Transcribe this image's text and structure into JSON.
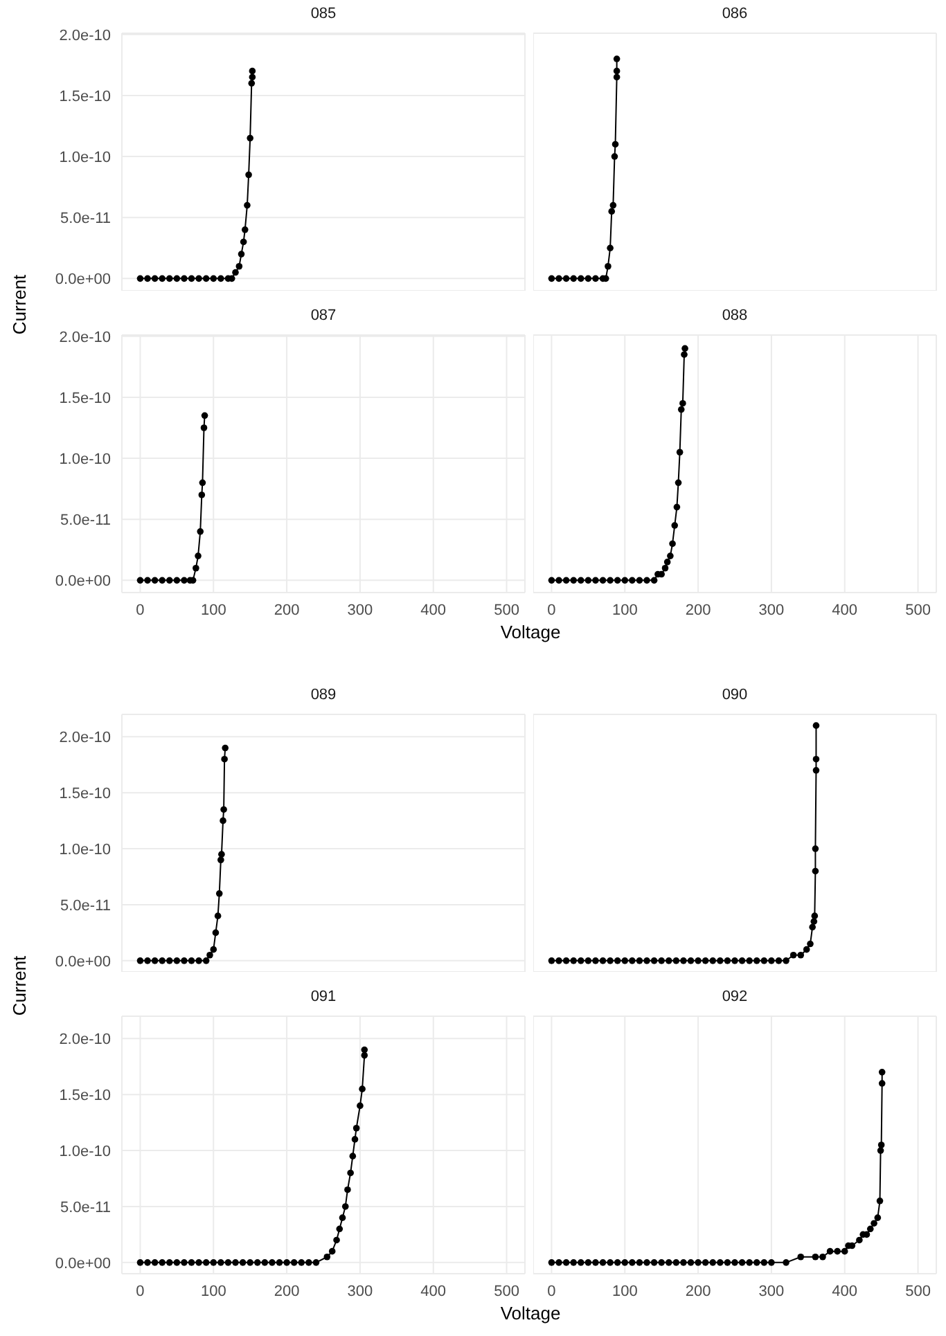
{
  "chart_data": [
    {
      "type": "line",
      "title": "085",
      "ylabel": "Current",
      "tick_labels": "y",
      "grid": true,
      "marker": "circle",
      "line_style": "solid",
      "xlim": [
        -25,
        525
      ],
      "ylim": [
        -1e-11,
        2.01e-10
      ],
      "xticks": [
        0,
        100,
        200,
        300,
        400,
        500
      ],
      "yticks": [
        {
          "value": 0,
          "label": "0.0e+00"
        },
        {
          "value": 5e-11,
          "label": "5.0e-11"
        },
        {
          "value": 1e-10,
          "label": "1.0e-10"
        },
        {
          "value": 1.5e-10,
          "label": "1.5e-10"
        },
        {
          "value": 2e-10,
          "label": "2.0e-10"
        }
      ],
      "series": [
        {
          "color": "#000000",
          "x": [
            0,
            10,
            20,
            30,
            40,
            50,
            60,
            70,
            80,
            90,
            100,
            110,
            120,
            125,
            130,
            135,
            138,
            141,
            143,
            146,
            148,
            150,
            152,
            153,
            153
          ],
          "values": [
            0,
            0,
            0,
            0,
            0,
            0,
            0,
            0,
            0,
            0,
            0,
            0,
            0,
            0,
            5e-12,
            1e-11,
            2e-11,
            3e-11,
            4e-11,
            6e-11,
            8.5e-11,
            1.15e-10,
            1.6e-10,
            1.65e-10,
            1.7e-10
          ]
        }
      ]
    },
    {
      "type": "line",
      "title": "086",
      "tick_labels": false,
      "grid": true,
      "marker": "circle",
      "line_style": "solid",
      "xlim": [
        -25,
        525
      ],
      "ylim": [
        -1e-11,
        2.01e-10
      ],
      "xticks": [
        0,
        100,
        200,
        300,
        400,
        500
      ],
      "yticks": [
        {
          "value": 0,
          "label": null
        },
        {
          "value": 5e-11,
          "label": null
        },
        {
          "value": 1e-10,
          "label": null
        },
        {
          "value": 1.5e-10,
          "label": null
        },
        {
          "value": 2e-10,
          "label": null
        }
      ],
      "series": [
        {
          "color": "#000000",
          "x": [
            0,
            10,
            20,
            30,
            40,
            50,
            60,
            70,
            74,
            77,
            80,
            82,
            84,
            86,
            87,
            89,
            89,
            89
          ],
          "values": [
            0,
            0,
            0,
            0,
            0,
            0,
            0,
            0,
            0,
            1e-11,
            2.5e-11,
            5.5e-11,
            6e-11,
            1e-10,
            1.1e-10,
            1.65e-10,
            1.7e-10,
            1.8e-10
          ]
        }
      ]
    },
    {
      "type": "line",
      "title": "087",
      "xlabel": "Voltage",
      "grid": true,
      "marker": "circle",
      "line_style": "solid",
      "xlim": [
        -25,
        525
      ],
      "ylim": [
        -1e-11,
        2.01e-10
      ],
      "xticks": [
        0,
        100,
        200,
        300,
        400,
        500
      ],
      "yticks": [
        {
          "value": 0,
          "label": "0.0e+00"
        },
        {
          "value": 5e-11,
          "label": "5.0e-11"
        },
        {
          "value": 1e-10,
          "label": "1.0e-10"
        },
        {
          "value": 1.5e-10,
          "label": "1.5e-10"
        },
        {
          "value": 2e-10,
          "label": "2.0e-10"
        }
      ],
      "series": [
        {
          "color": "#000000",
          "x": [
            0,
            10,
            20,
            30,
            40,
            50,
            60,
            68,
            72,
            76,
            79,
            82,
            84,
            85,
            87,
            88
          ],
          "values": [
            0,
            0,
            0,
            0,
            0,
            0,
            0,
            0,
            0,
            1e-11,
            2e-11,
            4e-11,
            7e-11,
            8e-11,
            1.25e-10,
            1.35e-10
          ]
        }
      ]
    },
    {
      "type": "line",
      "title": "088",
      "tick_labels": "x",
      "grid": true,
      "marker": "circle",
      "line_style": "solid",
      "xlim": [
        -25,
        525
      ],
      "ylim": [
        -1e-11,
        2.01e-10
      ],
      "xticks": [
        0,
        100,
        200,
        300,
        400,
        500
      ],
      "yticks": [
        {
          "value": 0,
          "label": null
        },
        {
          "value": 5e-11,
          "label": null
        },
        {
          "value": 1e-10,
          "label": null
        },
        {
          "value": 1.5e-10,
          "label": null
        },
        {
          "value": 2e-10,
          "label": null
        }
      ],
      "series": [
        {
          "color": "#000000",
          "x": [
            0,
            10,
            20,
            30,
            40,
            50,
            60,
            70,
            80,
            90,
            100,
            110,
            120,
            130,
            140,
            145,
            150,
            155,
            158,
            162,
            165,
            168,
            171,
            173,
            175,
            177,
            179,
            181,
            182
          ],
          "values": [
            0,
            0,
            0,
            0,
            0,
            0,
            0,
            0,
            0,
            0,
            0,
            0,
            0,
            0,
            0,
            5e-12,
            5e-12,
            1e-11,
            1.5e-11,
            2e-11,
            3e-11,
            4.5e-11,
            6e-11,
            8e-11,
            1.05e-10,
            1.4e-10,
            1.45e-10,
            1.85e-10,
            1.9e-10
          ]
        }
      ]
    },
    {
      "type": "line",
      "title": "089",
      "ylabel": "Current",
      "tick_labels": "y",
      "grid": true,
      "marker": "circle",
      "line_style": "solid",
      "xlim": [
        -25,
        525
      ],
      "ylim": [
        -1e-11,
        2.2e-10
      ],
      "xticks": [
        0,
        100,
        200,
        300,
        400,
        500
      ],
      "yticks": [
        {
          "value": 0,
          "label": "0.0e+00"
        },
        {
          "value": 5e-11,
          "label": "5.0e-11"
        },
        {
          "value": 1e-10,
          "label": "1.0e-10"
        },
        {
          "value": 1.5e-10,
          "label": "1.5e-10"
        },
        {
          "value": 2e-10,
          "label": "2.0e-10"
        }
      ],
      "series": [
        {
          "color": "#000000",
          "x": [
            0,
            10,
            20,
            30,
            40,
            50,
            60,
            70,
            80,
            90,
            95,
            100,
            103,
            106,
            108,
            110,
            111,
            113,
            114,
            115,
            116
          ],
          "values": [
            0,
            0,
            0,
            0,
            0,
            0,
            0,
            0,
            0,
            0,
            5e-12,
            1e-11,
            2.5e-11,
            4e-11,
            6e-11,
            9e-11,
            9.5e-11,
            1.25e-10,
            1.35e-10,
            1.8e-10,
            1.9e-10
          ]
        }
      ]
    },
    {
      "type": "line",
      "title": "090",
      "tick_labels": false,
      "grid": true,
      "marker": "circle",
      "line_style": "solid",
      "xlim": [
        -25,
        525
      ],
      "ylim": [
        -1e-11,
        2.2e-10
      ],
      "xticks": [
        0,
        100,
        200,
        300,
        400,
        500
      ],
      "yticks": [
        {
          "value": 0,
          "label": null
        },
        {
          "value": 5e-11,
          "label": null
        },
        {
          "value": 1e-10,
          "label": null
        },
        {
          "value": 1.5e-10,
          "label": null
        },
        {
          "value": 2e-10,
          "label": null
        }
      ],
      "series": [
        {
          "color": "#000000",
          "x": [
            0,
            10,
            20,
            30,
            40,
            50,
            60,
            70,
            80,
            90,
            100,
            110,
            120,
            130,
            140,
            150,
            160,
            170,
            180,
            190,
            200,
            210,
            220,
            230,
            240,
            250,
            260,
            270,
            280,
            290,
            300,
            310,
            320,
            330,
            340,
            348,
            353,
            356,
            358,
            359,
            360,
            360,
            361,
            361,
            361
          ],
          "values": [
            0,
            0,
            0,
            0,
            0,
            0,
            0,
            0,
            0,
            0,
            0,
            0,
            0,
            0,
            0,
            0,
            0,
            0,
            0,
            0,
            0,
            0,
            0,
            0,
            0,
            0,
            0,
            0,
            0,
            0,
            0,
            0,
            0,
            5e-12,
            5e-12,
            1e-11,
            1.5e-11,
            3e-11,
            3.5e-11,
            4e-11,
            8e-11,
            1e-10,
            1.7e-10,
            1.8e-10,
            2.1e-10
          ]
        }
      ]
    },
    {
      "type": "line",
      "title": "091",
      "xlabel": "Voltage",
      "grid": true,
      "marker": "circle",
      "line_style": "solid",
      "xlim": [
        -25,
        525
      ],
      "ylim": [
        -1e-11,
        2.2e-10
      ],
      "xticks": [
        0,
        100,
        200,
        300,
        400,
        500
      ],
      "yticks": [
        {
          "value": 0,
          "label": "0.0e+00"
        },
        {
          "value": 5e-11,
          "label": "5.0e-11"
        },
        {
          "value": 1e-10,
          "label": "1.0e-10"
        },
        {
          "value": 1.5e-10,
          "label": "1.5e-10"
        },
        {
          "value": 2e-10,
          "label": "2.0e-10"
        }
      ],
      "series": [
        {
          "color": "#000000",
          "x": [
            0,
            10,
            20,
            30,
            40,
            50,
            60,
            70,
            80,
            90,
            100,
            110,
            120,
            130,
            140,
            150,
            160,
            170,
            180,
            190,
            200,
            210,
            220,
            230,
            240,
            255,
            262,
            268,
            272,
            276,
            280,
            283,
            287,
            290,
            293,
            295,
            300,
            303,
            306,
            306
          ],
          "values": [
            0,
            0,
            0,
            0,
            0,
            0,
            0,
            0,
            0,
            0,
            0,
            0,
            0,
            0,
            0,
            0,
            0,
            0,
            0,
            0,
            0,
            0,
            0,
            0,
            0,
            5e-12,
            1e-11,
            2e-11,
            3e-11,
            4e-11,
            5e-11,
            6.5e-11,
            8e-11,
            9.5e-11,
            1.1e-10,
            1.2e-10,
            1.4e-10,
            1.55e-10,
            1.85e-10,
            1.9e-10
          ]
        }
      ]
    },
    {
      "type": "line",
      "title": "092",
      "tick_labels": "x",
      "grid": true,
      "marker": "circle",
      "line_style": "solid",
      "xlim": [
        -25,
        525
      ],
      "ylim": [
        -1e-11,
        2.2e-10
      ],
      "xticks": [
        0,
        100,
        200,
        300,
        400,
        500
      ],
      "yticks": [
        {
          "value": 0,
          "label": null
        },
        {
          "value": 5e-11,
          "label": null
        },
        {
          "value": 1e-10,
          "label": null
        },
        {
          "value": 1.5e-10,
          "label": null
        },
        {
          "value": 2e-10,
          "label": null
        }
      ],
      "series": [
        {
          "color": "#000000",
          "x": [
            0,
            10,
            20,
            30,
            40,
            50,
            60,
            70,
            80,
            90,
            100,
            110,
            120,
            130,
            140,
            150,
            160,
            170,
            180,
            190,
            200,
            210,
            220,
            230,
            240,
            250,
            260,
            270,
            280,
            290,
            300,
            320,
            340,
            360,
            370,
            380,
            390,
            400,
            405,
            410,
            420,
            425,
            430,
            435,
            440,
            445,
            448,
            449,
            450,
            451,
            451
          ],
          "values": [
            0,
            0,
            0,
            0,
            0,
            0,
            0,
            0,
            0,
            0,
            0,
            0,
            0,
            0,
            0,
            0,
            0,
            0,
            0,
            0,
            0,
            0,
            0,
            0,
            0,
            0,
            0,
            0,
            0,
            0,
            0,
            0,
            5e-12,
            5e-12,
            5e-12,
            1e-11,
            1e-11,
            1e-11,
            1.5e-11,
            1.5e-11,
            2e-11,
            2.5e-11,
            2.5e-11,
            3e-11,
            3.5e-11,
            4e-11,
            5.5e-11,
            1e-10,
            1.05e-10,
            1.6e-10,
            1.7e-10
          ]
        }
      ]
    }
  ]
}
